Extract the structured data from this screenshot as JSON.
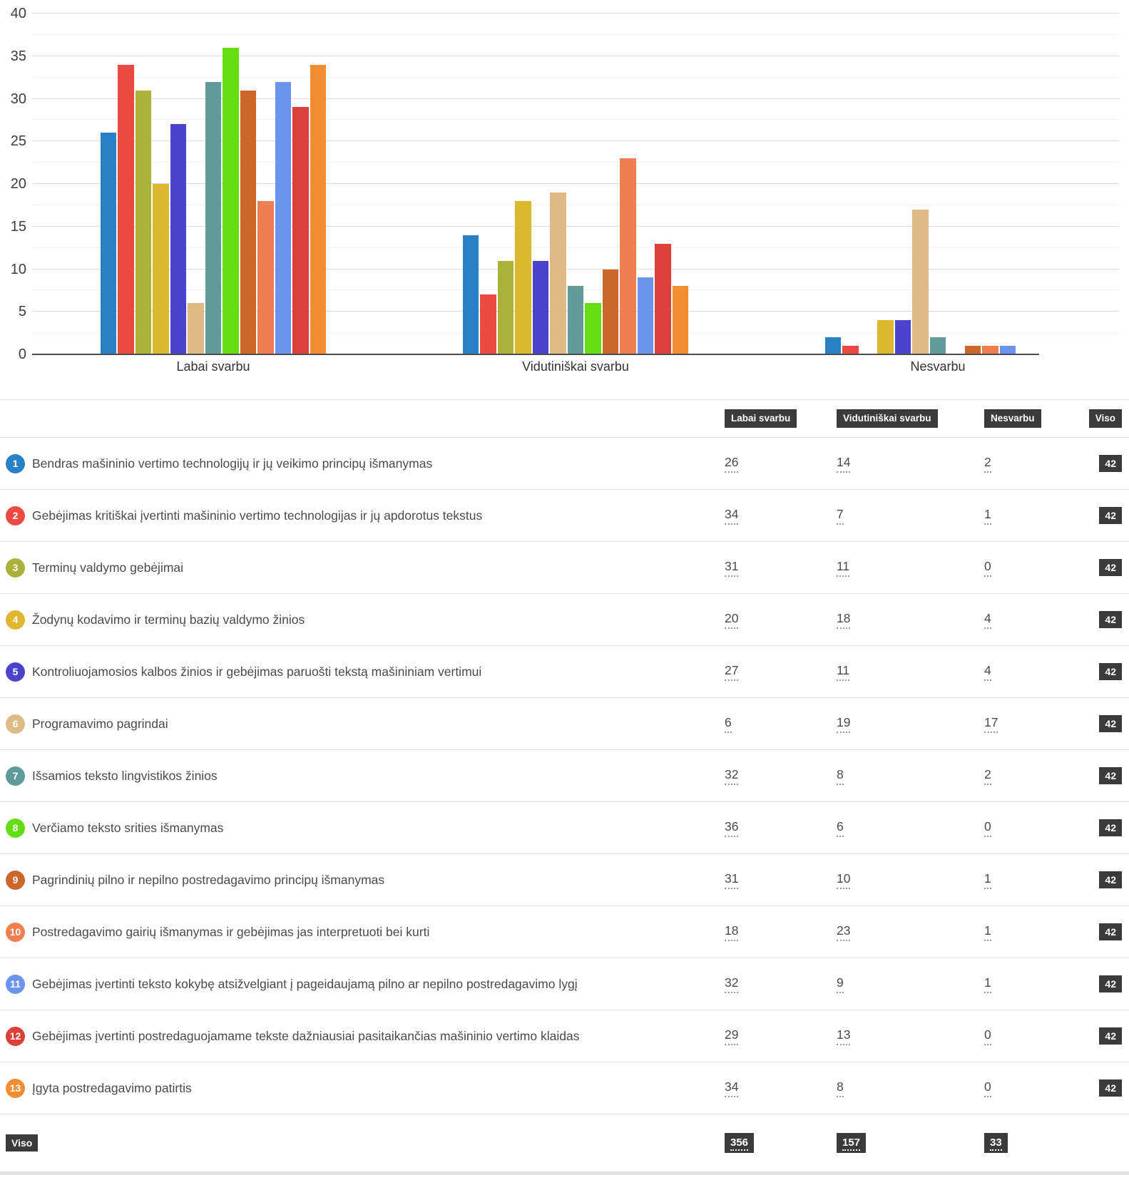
{
  "chart_data": {
    "type": "bar",
    "title": "",
    "xlabel": "",
    "ylabel": "",
    "categories": [
      "Labai svarbu",
      "Vidutiniškai svarbu",
      "Nesvarbu"
    ],
    "ylim": [
      0,
      40
    ],
    "y_ticks": [
      0,
      5,
      10,
      15,
      20,
      25,
      30,
      35,
      40
    ],
    "minor_grid_step": 2.5,
    "grid": true,
    "legend_position": "none",
    "series": [
      {
        "num": "1",
        "label": "Bendras mašininio vertimo technologijų ir jų veikimo principų išmanymas",
        "color": "#2a80c5",
        "values": [
          26,
          14,
          2
        ],
        "total": 42
      },
      {
        "num": "2",
        "label": "Gebėjimas kritiškai įvertinti mašininio vertimo technologijas ir jų apdorotus tekstus",
        "color": "#eb4a43",
        "values": [
          34,
          7,
          1
        ],
        "total": 42
      },
      {
        "num": "3",
        "label": "Terminų valdymo gebėjimai",
        "color": "#a9b339",
        "values": [
          31,
          11,
          0
        ],
        "total": 42
      },
      {
        "num": "4",
        "label": "Žodynų kodavimo ir terminų bazių valdymo žinios",
        "color": "#dcb72f",
        "values": [
          20,
          18,
          4
        ],
        "total": 42
      },
      {
        "num": "5",
        "label": "Kontroliuojamosios kalbos žinios ir gebėjimas paruošti tekstą mašininiam vertimui",
        "color": "#4a44cb",
        "values": [
          27,
          11,
          4
        ],
        "total": 42
      },
      {
        "num": "6",
        "label": "Programavimo pagrindai",
        "color": "#dfba85",
        "values": [
          6,
          19,
          17
        ],
        "total": 42
      },
      {
        "num": "7",
        "label": "Išsamios teksto lingvistikos žinios",
        "color": "#609a9b",
        "values": [
          32,
          8,
          2
        ],
        "total": 42
      },
      {
        "num": "8",
        "label": "Verčiamo teksto srities išmanymas",
        "color": "#65dd15",
        "values": [
          36,
          6,
          0
        ],
        "total": 42
      },
      {
        "num": "9",
        "label": "Pagrindinių pilno ir nepilno postredagavimo principų išmanymas",
        "color": "#cc672b",
        "values": [
          31,
          10,
          1
        ],
        "total": 42
      },
      {
        "num": "10",
        "label": "Postredagavimo gairių išmanymas ir gebėjimas jas interpretuoti bei kurti",
        "color": "#ef7e50",
        "values": [
          18,
          23,
          1
        ],
        "total": 42
      },
      {
        "num": "11",
        "label": "Gebėjimas įvertinti teksto kokybę atsižvelgiant į pageidaujamą pilno ar nepilno postredagavimo lygį",
        "color": "#6b94ec",
        "values": [
          32,
          9,
          1
        ],
        "total": 42
      },
      {
        "num": "12",
        "label": "Gebėjimas įvertinti postredaguojamame tekste dažniausiai pasitaikančias mašininio vertimo klaidas",
        "color": "#dc4139",
        "values": [
          29,
          13,
          0
        ],
        "total": 42
      },
      {
        "num": "13",
        "label": "Įgyta postredagavimo patirtis",
        "color": "#f28d33",
        "values": [
          34,
          8,
          0
        ],
        "total": 42
      }
    ]
  },
  "table": {
    "column_headers": [
      "Labai svarbu",
      "Vidutiniškai svarbu",
      "Nesvarbu",
      "Viso"
    ],
    "footer_label": "Viso",
    "footer_totals": [
      356,
      157,
      33
    ]
  }
}
